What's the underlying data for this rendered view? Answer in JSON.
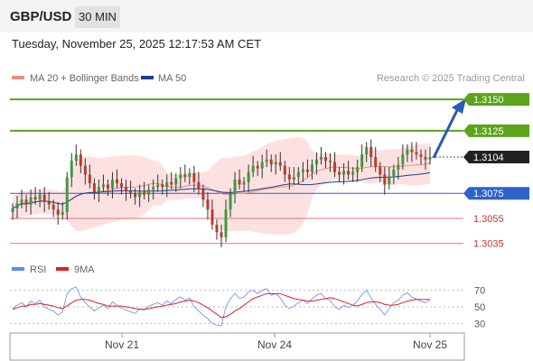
{
  "header": {
    "symbol": "GBP/USD",
    "timeframe": "30 MIN"
  },
  "datetime": "Tuesday, November 25, 2025 12:17:53 AM CET",
  "legend": {
    "ma20_label": "MA 20 + Bollinger Bands",
    "ma50_label": "MA 50",
    "copyright": "Research © 2025 Trading Central"
  },
  "colors": {
    "up_candle": "#3c9a3c",
    "down_candle": "#c0392b",
    "ma20": "#f28b82",
    "ma50": "#1a3d8f",
    "bollinger_fill": "#fde1e1",
    "resistance": "#5aa51a",
    "pivot": "#2e62c9",
    "support": "#e57373",
    "rsi": "#5b8def",
    "rsi_ma": "#e02020"
  },
  "levels": [
    {
      "value": "1.3150",
      "kind": "target"
    },
    {
      "value": "1.3125",
      "kind": "resistance"
    },
    {
      "value": "1.3104",
      "kind": "last"
    },
    {
      "value": "1.3075",
      "kind": "pivot"
    },
    {
      "value": "1.3055",
      "kind": "support"
    },
    {
      "value": "1.3035",
      "kind": "support"
    }
  ],
  "rsi_panel": {
    "rsi_label": "RSI",
    "ma_label": "9MA",
    "ticks": [
      "70",
      "50",
      "30"
    ]
  },
  "chart_data": {
    "type": "candlestick",
    "title": "GBP/USD 30 MIN",
    "x_ticks": [
      "Nov 21",
      "Nov 24",
      "Nov 25"
    ],
    "ylim": [
      1.3028,
      1.3158
    ],
    "levels": [
      1.315,
      1.3125,
      1.3104,
      1.3075,
      1.3055,
      1.3035
    ],
    "last_price": 1.3104,
    "forecast": {
      "direction": "up",
      "target": 1.315
    },
    "series": [
      {
        "name": "MA 20 + Bollinger Bands"
      },
      {
        "name": "MA 50"
      }
    ],
    "closes": [
      1.3063,
      1.3067,
      1.307,
      1.3066,
      1.3072,
      1.307,
      1.3074,
      1.3068,
      1.3066,
      1.3062,
      1.3058,
      1.306,
      1.3088,
      1.3101,
      1.3106,
      1.3097,
      1.309,
      1.3083,
      1.3076,
      1.308,
      1.3082,
      1.3079,
      1.3086,
      1.3083,
      1.308,
      1.3077,
      1.3075,
      1.3072,
      1.3076,
      1.3074,
      1.3078,
      1.308,
      1.3082,
      1.308,
      1.3084,
      1.3082,
      1.3087,
      1.309,
      1.3088,
      1.3091,
      1.3084,
      1.3078,
      1.307,
      1.3062,
      1.305,
      1.3044,
      1.304,
      1.3062,
      1.3075,
      1.3086,
      1.3082,
      1.3084,
      1.3092,
      1.3097,
      1.3095,
      1.31,
      1.3102,
      1.3098,
      1.31,
      1.3097,
      1.309,
      1.3086,
      1.3088,
      1.3092,
      1.3094,
      1.3092,
      1.3098,
      1.3102,
      1.3104,
      1.3101,
      1.31,
      1.3092,
      1.309,
      1.3093,
      1.309,
      1.3092,
      1.3096,
      1.3106,
      1.3112,
      1.3104,
      1.3096,
      1.309,
      1.3082,
      1.3088,
      1.3094,
      1.3098,
      1.3106,
      1.311,
      1.3108,
      1.3106,
      1.3104,
      1.3102,
      1.3104
    ],
    "rsi": {
      "ylim": [
        20,
        80
      ],
      "ticks": [
        70,
        50,
        30
      ],
      "values": [
        48,
        52,
        55,
        50,
        57,
        54,
        58,
        50,
        47,
        45,
        40,
        44,
        66,
        72,
        74,
        62,
        55,
        50,
        45,
        49,
        52,
        48,
        56,
        52,
        49,
        46,
        44,
        42,
        48,
        46,
        51,
        53,
        55,
        52,
        57,
        54,
        59,
        62,
        58,
        61,
        50,
        45,
        40,
        36,
        30,
        28,
        27,
        50,
        60,
        66,
        60,
        62,
        68,
        70,
        66,
        70,
        72,
        64,
        66,
        61,
        52,
        48,
        51,
        55,
        58,
        54,
        60,
        64,
        66,
        60,
        58,
        50,
        47,
        52,
        49,
        52,
        57,
        65,
        70,
        61,
        53,
        47,
        40,
        48,
        55,
        58,
        64,
        67,
        62,
        59,
        57,
        55,
        58
      ],
      "ma_values": [
        47,
        49,
        51,
        51,
        53,
        53,
        54,
        53,
        52,
        51,
        49,
        48,
        51,
        55,
        58,
        59,
        59,
        58,
        56,
        54,
        53,
        51,
        51,
        51,
        51,
        50,
        49,
        48,
        47,
        47,
        48,
        49,
        50,
        51,
        52,
        53,
        54,
        56,
        57,
        58,
        57,
        55,
        52,
        49,
        45,
        41,
        37,
        38,
        41,
        45,
        48,
        52,
        56,
        60,
        62,
        64,
        66,
        66,
        66,
        66,
        64,
        62,
        60,
        59,
        58,
        57,
        57,
        58,
        59,
        60,
        61,
        60,
        58,
        56,
        54,
        52,
        51,
        53,
        55,
        56,
        56,
        55,
        53,
        52,
        52,
        53,
        55,
        57,
        58,
        59,
        59,
        59,
        59
      ]
    }
  }
}
